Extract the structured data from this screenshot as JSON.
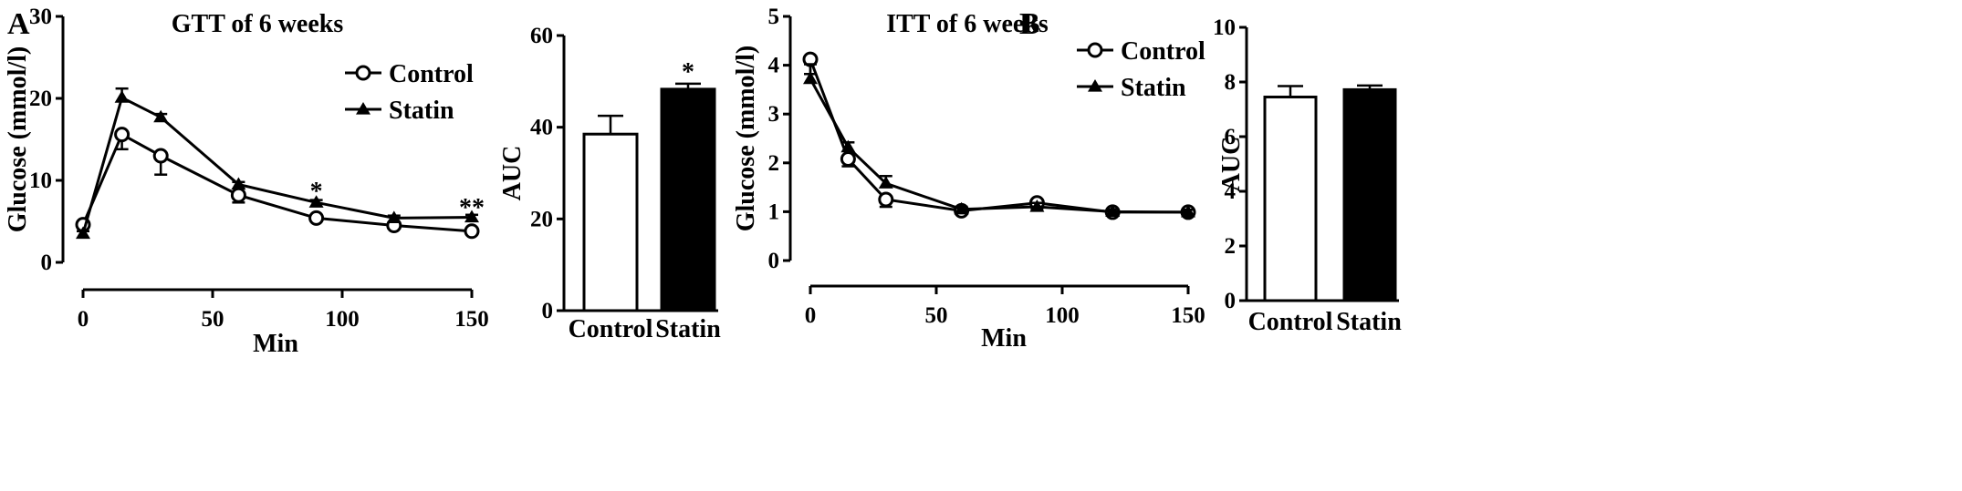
{
  "panels": [
    {
      "letter": "A"
    },
    {
      "letter": "B"
    }
  ],
  "chart_data": [
    {
      "type": "line",
      "panel": "A",
      "title": "GTT of 6 weeks",
      "xlabel": "Min",
      "ylabel": "Glucose (mmol/l)",
      "xlim": [
        0,
        150
      ],
      "ylim": [
        0,
        30
      ],
      "xticks": [
        0,
        50,
        100,
        150
      ],
      "yticks": [
        0,
        10,
        20,
        30
      ],
      "grid": false,
      "legend_position": "top-right",
      "series": [
        {
          "name": "Control",
          "marker": "circle-open",
          "x": [
            0,
            15,
            30,
            60,
            90,
            120,
            150
          ],
          "y": [
            4.6,
            15.6,
            13.0,
            8.2,
            5.4,
            4.5,
            3.8
          ],
          "err": [
            0.3,
            1.8,
            2.3,
            0.9,
            0.3,
            0.3,
            0.3
          ]
        },
        {
          "name": "Statin",
          "marker": "triangle-filled",
          "x": [
            0,
            15,
            30,
            60,
            90,
            120,
            150
          ],
          "y": [
            3.5,
            20.1,
            17.7,
            9.5,
            7.3,
            5.4,
            5.5
          ],
          "err": [
            0.3,
            1.1,
            0.4,
            0.3,
            0.3,
            0.3,
            0.3
          ]
        }
      ],
      "annotations": [
        {
          "x": 90,
          "y": 8.8,
          "text": "*"
        },
        {
          "x": 150,
          "y": 6.8,
          "text": "**"
        }
      ]
    },
    {
      "type": "bar",
      "panel": "A",
      "title": "",
      "xlabel": "",
      "ylabel": "AUC",
      "ylim": [
        0,
        60
      ],
      "yticks": [
        0,
        20,
        40,
        60
      ],
      "grid": false,
      "categories": [
        "Control",
        "Statin"
      ],
      "values": [
        38.5,
        48.3
      ],
      "err": [
        4.0,
        1.2
      ],
      "fills": [
        "#ffffff",
        "#000000"
      ],
      "annotations": [
        {
          "category": "Statin",
          "text": "*"
        }
      ]
    },
    {
      "type": "line",
      "panel": "B",
      "title": "ITT of 6 weeks",
      "xlabel": "Min",
      "ylabel": "Glucose (mmol/l)",
      "xlim": [
        0,
        150
      ],
      "ylim": [
        0,
        5
      ],
      "xticks": [
        0,
        50,
        100,
        150
      ],
      "yticks": [
        0,
        1,
        2,
        3,
        4,
        5
      ],
      "grid": false,
      "legend_position": "top-right",
      "series": [
        {
          "name": "Control",
          "marker": "circle-open",
          "x": [
            0,
            15,
            30,
            60,
            90,
            120,
            150
          ],
          "y": [
            4.12,
            2.08,
            1.25,
            1.02,
            1.18,
            0.99,
            0.99
          ],
          "err": [
            0.3,
            0.15,
            0.15,
            0.05,
            0.12,
            0.05,
            0.05
          ]
        },
        {
          "name": "Statin",
          "marker": "triangle-filled",
          "x": [
            0,
            15,
            30,
            60,
            90,
            120,
            150
          ],
          "y": [
            3.72,
            2.32,
            1.58,
            1.05,
            1.1,
            1.0,
            0.99
          ],
          "err": [
            0.3,
            0.1,
            0.15,
            0.05,
            0.08,
            0.05,
            0.05
          ]
        }
      ],
      "annotations": []
    },
    {
      "type": "bar",
      "panel": "B",
      "title": "",
      "xlabel": "",
      "ylabel": "AUC",
      "ylim": [
        0,
        10
      ],
      "yticks": [
        0,
        2,
        4,
        6,
        8,
        10
      ],
      "grid": false,
      "categories": [
        "Control",
        "Statin"
      ],
      "values": [
        7.45,
        7.72
      ],
      "err": [
        0.4,
        0.15
      ],
      "fills": [
        "#ffffff",
        "#000000"
      ],
      "annotations": []
    }
  ]
}
